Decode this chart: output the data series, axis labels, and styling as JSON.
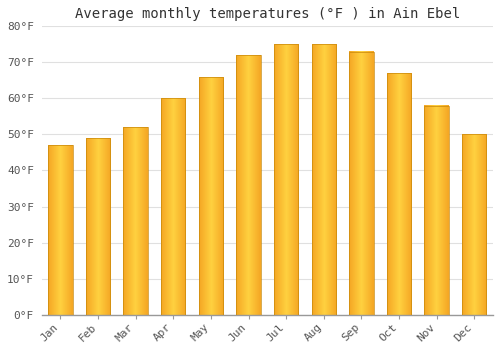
{
  "title": "Average monthly temperatures (°F ) in Ain Ebel",
  "months": [
    "Jan",
    "Feb",
    "Mar",
    "Apr",
    "May",
    "Jun",
    "Jul",
    "Aug",
    "Sep",
    "Oct",
    "Nov",
    "Dec"
  ],
  "values": [
    47,
    49,
    52,
    60,
    66,
    72,
    75,
    75,
    73,
    67,
    58,
    50
  ],
  "bar_color_left": "#F5A623",
  "bar_color_center": "#FFD140",
  "bar_color_right": "#F5A623",
  "bar_edge_color": "#E8A020",
  "ylim": [
    0,
    80
  ],
  "yticks": [
    0,
    10,
    20,
    30,
    40,
    50,
    60,
    70,
    80
  ],
  "ytick_labels": [
    "0°F",
    "10°F",
    "20°F",
    "30°F",
    "40°F",
    "50°F",
    "60°F",
    "70°F",
    "80°F"
  ],
  "background_color": "#FFFFFF",
  "grid_color": "#E0E0E0",
  "title_fontsize": 10,
  "tick_fontsize": 8,
  "bar_width": 0.65
}
